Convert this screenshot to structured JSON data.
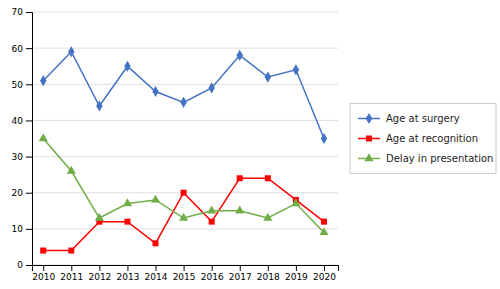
{
  "chart_data": {
    "type": "line",
    "x": [
      2010,
      2011,
      2012,
      2013,
      2014,
      2015,
      2016,
      2017,
      2018,
      2019,
      2020
    ],
    "series": [
      {
        "name": "Age at surgery",
        "color": "#4472C4",
        "marker": "diamond",
        "values": [
          51,
          59,
          44,
          55,
          48,
          45,
          49,
          58,
          52,
          54,
          35
        ]
      },
      {
        "name": "Age at recognition",
        "color": "#FF0000",
        "marker": "square",
        "values": [
          4,
          4,
          12,
          12,
          6,
          20,
          12,
          24,
          24,
          18,
          12
        ]
      },
      {
        "name": "Delay in presentation",
        "color": "#70AD47",
        "marker": "triangle",
        "values": [
          35,
          26,
          13,
          17,
          18,
          13,
          15,
          15,
          13,
          17,
          9
        ]
      }
    ],
    "xlim": [
      2009.6,
      2020.5
    ],
    "xticks": [
      2010,
      2011,
      2012,
      2013,
      2014,
      2015,
      2016,
      2017,
      2018,
      2019,
      2020
    ],
    "ylim": [
      0,
      70
    ],
    "yticks": [
      0,
      10,
      20,
      30,
      40,
      50,
      60,
      70
    ],
    "grid": true,
    "legend": "right"
  }
}
